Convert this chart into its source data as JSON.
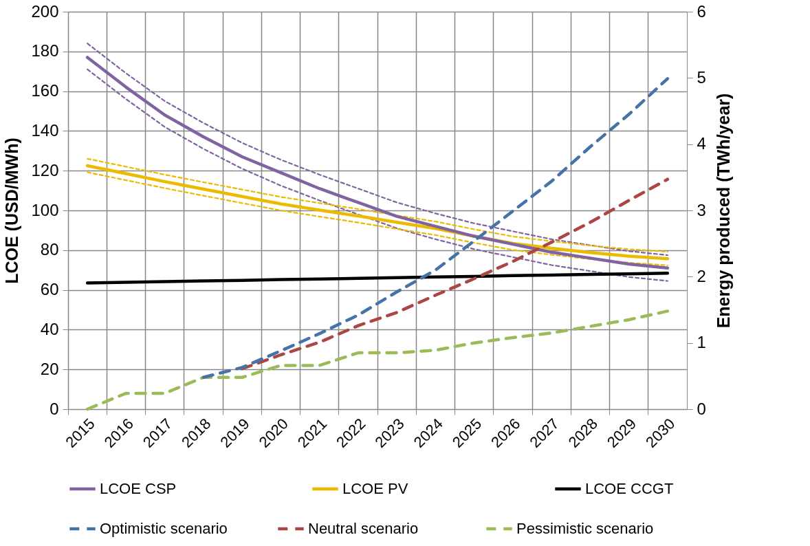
{
  "chart_data": {
    "type": "line",
    "categories": [
      "2015",
      "2016",
      "2017",
      "2018",
      "2019",
      "2020",
      "2021",
      "2022",
      "2023",
      "2024",
      "2025",
      "2026",
      "2027",
      "2028",
      "2029",
      "2030"
    ],
    "ylabel": "LCOE (USD/MWh)",
    "y2label": "Energy  produced (TWh/year)",
    "ylim": [
      0,
      200
    ],
    "yticks": [
      0,
      20,
      40,
      60,
      80,
      100,
      120,
      140,
      160,
      180,
      200
    ],
    "y2lim": [
      0,
      6
    ],
    "y2ticks": [
      0,
      1,
      2,
      3,
      4,
      5,
      6
    ],
    "grid": true,
    "legend": "bottom",
    "line_style": "solid",
    "series": [
      {
        "name": "LCOE CSP",
        "color": "#8064a2",
        "values": [
          177,
          162,
          148,
          137,
          127,
          119,
          111,
          104,
          97,
          92,
          87,
          83,
          79,
          76,
          73,
          71
        ]
      },
      {
        "name": "LCOE PV",
        "color": "#ebbb00",
        "values": [
          122.5,
          118.5,
          114.5,
          110.7,
          107,
          103.3,
          100.2,
          97.2,
          94,
          90.9,
          87,
          83.4,
          81,
          78.8,
          77,
          75.7
        ]
      },
      {
        "name": "LCOE CCGT",
        "color": "#000000",
        "values": [
          63.5,
          63.8,
          64.2,
          64.5,
          64.8,
          65.2,
          65.5,
          65.8,
          66.2,
          66.5,
          66.8,
          67.2,
          67.5,
          67.8,
          68.1,
          68.4
        ]
      },
      {
        "name": "Optimistic scenario",
        "color": "#4573a7",
        "axis": "y2",
        "line_style": "dashed",
        "values": [
          null,
          null,
          null,
          0.48,
          0.63,
          0.88,
          1.14,
          1.42,
          1.77,
          2.1,
          2.54,
          2.99,
          3.44,
          3.96,
          4.45,
          4.99
        ]
      },
      {
        "name": "Neutral scenario",
        "color": "#aa4643",
        "axis": "y2",
        "line_style": "dashed",
        "values": [
          null,
          null,
          null,
          null,
          0.61,
          0.82,
          1.01,
          1.26,
          1.46,
          1.72,
          1.97,
          2.23,
          2.52,
          2.82,
          3.15,
          3.47
        ]
      },
      {
        "name": "Pessimistic scenario",
        "color": "#9bbb59",
        "axis": "y2",
        "line_style": "dashed",
        "values": [
          0,
          0.24,
          0.24,
          0.48,
          0.48,
          0.66,
          0.66,
          0.85,
          0.85,
          0.89,
          1.0,
          1.08,
          1.15,
          1.25,
          1.35,
          1.48
        ]
      },
      {
        "color": "#8064a2",
        "line_style": "dashed",
        "values": [
          184,
          169,
          155,
          144,
          134,
          125.5,
          118,
          111,
          104,
          98.5,
          93.5,
          89.5,
          85.5,
          82.5,
          79.5,
          77.5
        ]
      },
      {
        "color": "#8064a2",
        "line_style": "dashed",
        "values": [
          171,
          156,
          142,
          131,
          121,
          112.5,
          105,
          98,
          91,
          85.5,
          80.5,
          76.5,
          72.5,
          69.5,
          66.5,
          64.5
        ]
      },
      {
        "color": "#ebbb00",
        "line_style": "dashed",
        "values": [
          126,
          122,
          118,
          114.2,
          110.5,
          106.8,
          103.7,
          100.7,
          97.5,
          94.4,
          90.5,
          86.9,
          84.5,
          82.3,
          80.5,
          79.2
        ]
      },
      {
        "color": "#ebbb00",
        "line_style": "dashed",
        "values": [
          119.2,
          115.2,
          111.2,
          107.4,
          103.7,
          100,
          96.9,
          93.9,
          90.7,
          87.6,
          83.7,
          80.1,
          77.7,
          75.5,
          73.7,
          72.4
        ]
      }
    ]
  }
}
